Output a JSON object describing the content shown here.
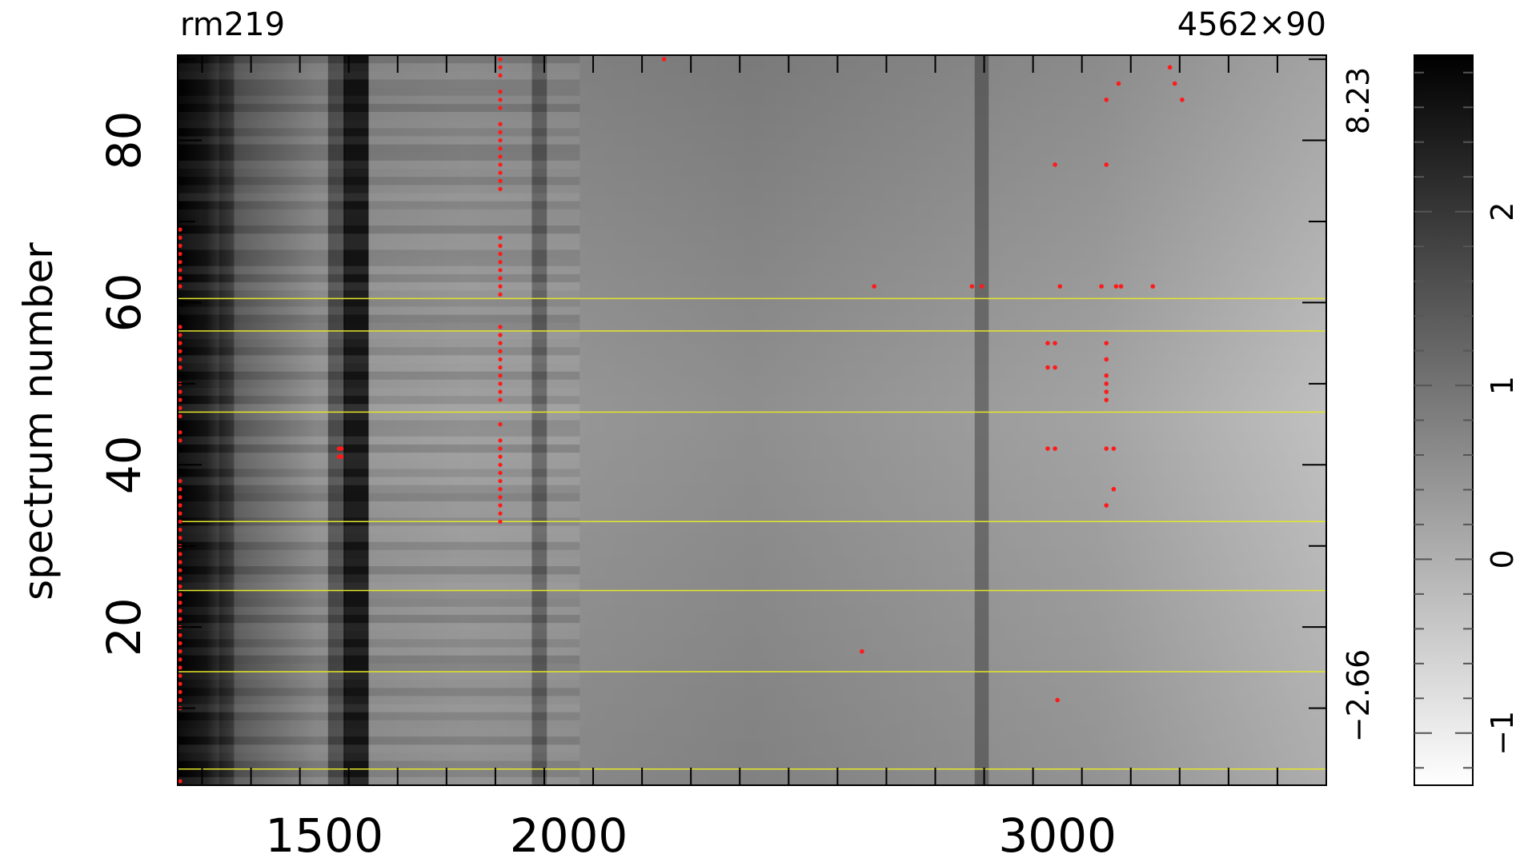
{
  "header": {
    "object_name": "rm219",
    "dimensions": "4562×90"
  },
  "chart_data": {
    "type": "heatmap",
    "xlabel": "",
    "ylabel": "spectrum number",
    "xlim": [
      1200,
      3550
    ],
    "ylim": [
      1,
      90
    ],
    "x_ticks": [
      1500,
      2000,
      3000
    ],
    "y_ticks": [
      20,
      40,
      60,
      80
    ],
    "right_axis_labels": {
      "top": "8.23",
      "bottom": "−2.66"
    },
    "colorbar": {
      "range": [
        -1.3,
        2.9
      ],
      "ticks": [
        -1,
        0,
        1,
        2
      ],
      "tick_labels": [
        "−1",
        "0",
        "1",
        "2"
      ],
      "colormap": "gray_reversed"
    },
    "dark_columns": [
      {
        "x": 1565,
        "strength": 0.85
      },
      {
        "x": 1525,
        "strength": 0.45
      },
      {
        "x": 1300,
        "strength": 0.35
      },
      {
        "x": 1940,
        "strength": 0.35
      },
      {
        "x": 2845,
        "strength": 0.3
      }
    ],
    "yellow_rows": [
      2,
      14,
      24,
      32.5,
      46,
      56,
      60
    ],
    "red_columns": [
      {
        "x": 1205,
        "y_ranges": [
          [
            1,
            1
          ],
          [
            10,
            17
          ],
          [
            18,
            32
          ],
          [
            33,
            38
          ],
          [
            43,
            44
          ],
          [
            46,
            50
          ],
          [
            52,
            57
          ],
          [
            62,
            69
          ]
        ]
      },
      {
        "x": 1860,
        "y_ranges": [
          [
            33,
            43
          ],
          [
            45,
            45
          ],
          [
            48,
            57
          ],
          [
            61,
            68
          ],
          [
            74,
            82
          ],
          [
            84,
            86
          ],
          [
            88,
            90
          ]
        ]
      }
    ],
    "red_points": [
      {
        "x": 1530,
        "y": 41
      },
      {
        "x": 1530,
        "y": 42
      },
      {
        "x": 1535,
        "y": 41
      },
      {
        "x": 1535,
        "y": 42
      },
      {
        "x": 2195,
        "y": 90
      },
      {
        "x": 2600,
        "y": 17
      },
      {
        "x": 2625,
        "y": 62
      },
      {
        "x": 2825,
        "y": 62
      },
      {
        "x": 2845,
        "y": 62
      },
      {
        "x": 2980,
        "y": 42
      },
      {
        "x": 2980,
        "y": 52
      },
      {
        "x": 2980,
        "y": 55
      },
      {
        "x": 2995,
        "y": 42
      },
      {
        "x": 2995,
        "y": 52
      },
      {
        "x": 2995,
        "y": 55
      },
      {
        "x": 2995,
        "y": 77
      },
      {
        "x": 3000,
        "y": 11
      },
      {
        "x": 3005,
        "y": 62
      },
      {
        "x": 3090,
        "y": 62
      },
      {
        "x": 3100,
        "y": 35
      },
      {
        "x": 3100,
        "y": 42
      },
      {
        "x": 3100,
        "y": 48
      },
      {
        "x": 3100,
        "y": 49
      },
      {
        "x": 3100,
        "y": 50
      },
      {
        "x": 3100,
        "y": 51
      },
      {
        "x": 3100,
        "y": 53
      },
      {
        "x": 3100,
        "y": 55
      },
      {
        "x": 3100,
        "y": 77
      },
      {
        "x": 3100,
        "y": 85
      },
      {
        "x": 3115,
        "y": 37
      },
      {
        "x": 3115,
        "y": 42
      },
      {
        "x": 3120,
        "y": 62
      },
      {
        "x": 3130,
        "y": 62
      },
      {
        "x": 3125,
        "y": 87
      },
      {
        "x": 3195,
        "y": 62
      },
      {
        "x": 3230,
        "y": 89
      },
      {
        "x": 3240,
        "y": 87
      },
      {
        "x": 3255,
        "y": 85
      }
    ]
  }
}
